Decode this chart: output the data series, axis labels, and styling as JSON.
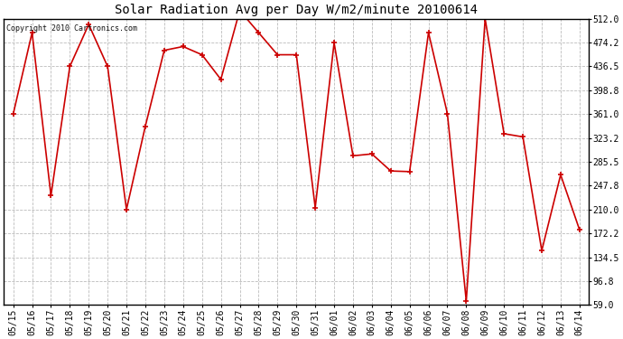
{
  "title": "Solar Radiation Avg per Day W/m2/minute 20100614",
  "copyright": "Copyright 2010 Cartronics.com",
  "dates": [
    "05/15",
    "05/16",
    "05/17",
    "05/18",
    "05/19",
    "05/20",
    "05/21",
    "05/22",
    "05/23",
    "05/24",
    "05/25",
    "05/26",
    "05/27",
    "05/28",
    "05/29",
    "05/30",
    "05/31",
    "06/01",
    "06/02",
    "06/03",
    "06/04",
    "06/05",
    "06/06",
    "06/07",
    "06/08",
    "06/09",
    "06/10",
    "06/11",
    "06/12",
    "06/13",
    "06/14"
  ],
  "values": [
    361.0,
    490.0,
    232.0,
    436.5,
    503.0,
    436.5,
    210.0,
    342.0,
    462.0,
    468.0,
    455.0,
    416.0,
    525.0,
    490.0,
    455.0,
    455.0,
    213.0,
    474.0,
    295.0,
    298.0,
    271.0,
    270.0,
    490.0,
    362.0,
    65.0,
    512.0,
    330.0,
    325.0,
    145.0,
    265.0,
    178.0
  ],
  "line_color": "#cc0000",
  "marker": "+",
  "marker_size": 5,
  "marker_linewidth": 1.2,
  "line_width": 1.2,
  "bg_color": "#ffffff",
  "plot_bg_color": "#ffffff",
  "grid_color": "#aaaaaa",
  "grid_linestyle": "--",
  "yticks": [
    59.0,
    96.8,
    134.5,
    172.2,
    210.0,
    247.8,
    285.5,
    323.2,
    361.0,
    398.8,
    436.5,
    474.2,
    512.0
  ],
  "ylim": [
    59.0,
    512.0
  ],
  "title_fontsize": 10,
  "tick_fontsize": 7,
  "copyright_fontsize": 6
}
